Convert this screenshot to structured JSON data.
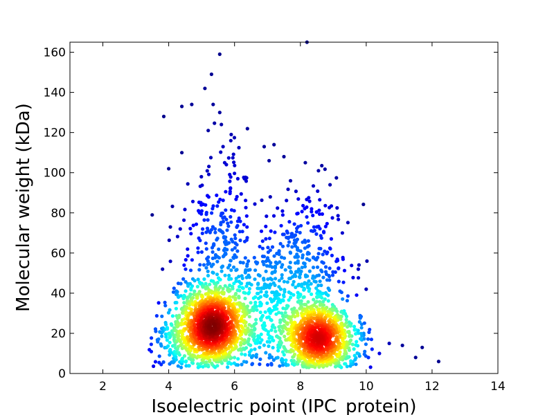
{
  "chart_data": {
    "type": "scatter",
    "title": "",
    "xlabel": "Isoelectric point (IPC_protein)",
    "ylabel": "Molecular weight (kDa)",
    "xlim": [
      1,
      14
    ],
    "ylim": [
      0,
      165
    ],
    "xticks": [
      2,
      4,
      6,
      8,
      10,
      12,
      14
    ],
    "yticks": [
      0,
      20,
      40,
      60,
      80,
      100,
      120,
      140,
      160
    ],
    "grid": false,
    "legend": "none",
    "colormap": "jet (point density)",
    "outliers": [
      [
        5.55,
        159
      ],
      [
        5.3,
        149
      ],
      [
        5.1,
        142
      ],
      [
        5.35,
        134
      ],
      [
        4.7,
        134
      ],
      [
        4.4,
        133
      ],
      [
        5.55,
        130
      ],
      [
        3.85,
        128
      ],
      [
        5.2,
        121
      ],
      [
        5.6,
        124
      ],
      [
        5.9,
        119
      ],
      [
        5.65,
        113
      ],
      [
        6.9,
        113
      ],
      [
        7.2,
        114
      ],
      [
        7.5,
        108
      ],
      [
        7.05,
        106
      ],
      [
        4.4,
        110
      ],
      [
        4.0,
        102
      ],
      [
        5.7,
        105
      ],
      [
        6.1,
        97
      ],
      [
        6.3,
        97
      ],
      [
        7.7,
        96
      ],
      [
        8.15,
        105
      ],
      [
        8.55,
        101
      ],
      [
        8.9,
        94
      ],
      [
        3.5,
        79
      ],
      [
        4.05,
        73
      ],
      [
        4.35,
        72
      ],
      [
        10.0,
        42
      ],
      [
        12.2,
        6
      ],
      [
        11.7,
        13
      ],
      [
        11.5,
        8
      ],
      [
        11.1,
        14
      ],
      [
        10.7,
        15
      ],
      [
        10.4,
        10
      ],
      [
        8.2,
        165
      ]
    ],
    "clusters": [
      {
        "cx": 5.3,
        "cy": 24,
        "sx": 0.55,
        "sy": 10,
        "n": 1100
      },
      {
        "cx": 8.5,
        "cy": 18,
        "sx": 0.5,
        "sy": 9,
        "n": 850
      },
      {
        "cx": 5.4,
        "cy": 55,
        "sx": 0.6,
        "sy": 22,
        "n": 260
      },
      {
        "cx": 8.3,
        "cy": 45,
        "sx": 0.6,
        "sy": 18,
        "n": 230
      },
      {
        "cx": 6.9,
        "cy": 30,
        "sx": 0.7,
        "sy": 16,
        "n": 300
      },
      {
        "cx": 7.3,
        "cy": 55,
        "sx": 0.7,
        "sy": 15,
        "n": 110
      },
      {
        "cx": 4.3,
        "cy": 15,
        "sx": 0.45,
        "sy": 8,
        "n": 140
      },
      {
        "cx": 9.4,
        "cy": 14,
        "sx": 0.45,
        "sy": 8,
        "n": 110
      },
      {
        "cx": 5.6,
        "cy": 90,
        "sx": 0.4,
        "sy": 15,
        "n": 45
      },
      {
        "cx": 8.4,
        "cy": 78,
        "sx": 0.45,
        "sy": 12,
        "n": 40
      }
    ]
  }
}
